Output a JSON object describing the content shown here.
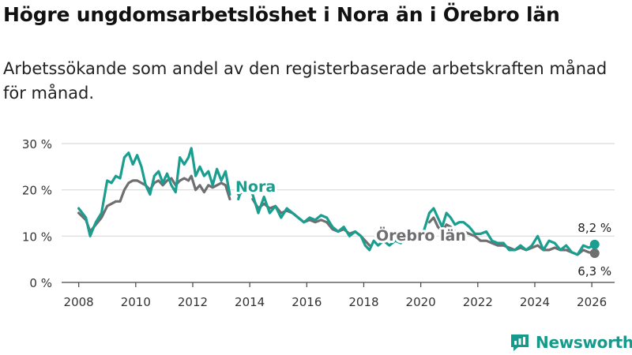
{
  "title": "Högre ungdomsarbetslöshet i Nora än i Örebro län",
  "subtitle": "Arbetssökande som andel av den registerbaserade arbetskraften månad för månad.",
  "brand": "Newsworthy",
  "colors": {
    "nora": "#1a9e8f",
    "orebro": "#6f6f72",
    "grid": "#d9d9d9",
    "axis": "#444444"
  },
  "chart_data": {
    "type": "line",
    "ylabel": "",
    "xlabel": "",
    "ylim": [
      0,
      30
    ],
    "xlim": [
      2007.4,
      2026.8
    ],
    "y_ticks": [
      0,
      10,
      20,
      30
    ],
    "y_tick_labels": [
      "0 %",
      "10 %",
      "20 %",
      "30 %"
    ],
    "x_ticks": [
      2008,
      2010,
      2012,
      2014,
      2016,
      2018,
      2020,
      2022,
      2024,
      2026
    ],
    "x_tick_labels": [
      "2008",
      "2010",
      "2012",
      "2014",
      "2016",
      "2018",
      "2020",
      "2022",
      "2024",
      "2026"
    ],
    "series": [
      {
        "name": "Nora",
        "label": "Nora",
        "end_label": "8,2 %",
        "x": [
          2008.0,
          2008.25,
          2008.4,
          2008.6,
          2008.8,
          2009.0,
          2009.15,
          2009.3,
          2009.45,
          2009.6,
          2009.75,
          2009.9,
          2010.05,
          2010.2,
          2010.35,
          2010.5,
          2010.65,
          2010.8,
          2010.95,
          2011.1,
          2011.25,
          2011.4,
          2011.55,
          2011.7,
          2011.85,
          2011.95,
          2012.1,
          2012.25,
          2012.4,
          2012.55,
          2012.7,
          2012.85,
          2013.0,
          2013.15,
          2013.3,
          2013.45,
          2013.6,
          2013.75,
          2013.9,
          2014.1,
          2014.3,
          2014.5,
          2014.7,
          2014.9,
          2015.1,
          2015.3,
          2015.5,
          2015.7,
          2015.9,
          2016.1,
          2016.3,
          2016.5,
          2016.7,
          2016.9,
          2017.1,
          2017.3,
          2017.5,
          2017.7,
          2017.9,
          2018.05,
          2018.2,
          2018.35,
          2018.5,
          2018.7,
          2018.9,
          2019.1,
          2019.3,
          2019.5,
          2019.7,
          2019.9,
          2020.1,
          2020.3,
          2020.45,
          2020.6,
          2020.75,
          2020.9,
          2021.05,
          2021.2,
          2021.35,
          2021.5,
          2021.7,
          2021.9,
          2022.1,
          2022.3,
          2022.5,
          2022.7,
          2022.9,
          2023.1,
          2023.3,
          2023.5,
          2023.7,
          2023.9,
          2024.1,
          2024.3,
          2024.5,
          2024.7,
          2024.9,
          2025.1,
          2025.3,
          2025.5,
          2025.7,
          2025.9,
          2026.1
        ],
        "values": [
          16,
          14,
          10,
          13,
          15,
          22,
          21.5,
          23,
          22.5,
          27,
          28,
          25.5,
          27.5,
          25,
          21,
          19,
          23,
          24,
          21.5,
          23.5,
          21,
          19.5,
          27,
          25.5,
          27,
          29,
          23,
          25,
          23,
          24,
          21,
          24.5,
          22,
          24,
          19,
          null,
          18,
          21,
          null,
          19,
          15,
          18.5,
          15,
          16.5,
          14,
          16,
          15,
          14,
          13,
          14,
          13.5,
          14.5,
          14,
          12,
          11,
          12,
          10,
          11,
          10,
          8,
          7,
          9,
          8,
          9,
          8,
          9,
          8.5,
          10,
          9,
          10,
          11,
          15,
          16,
          14,
          12,
          15,
          14,
          12.5,
          13,
          13,
          12,
          10.5,
          10.5,
          11,
          9,
          8.5,
          8.5,
          7,
          7,
          8,
          7,
          8,
          10,
          7,
          9,
          8.5,
          7,
          8,
          6.5,
          6,
          8,
          7.5,
          8.2
        ]
      },
      {
        "name": "Örebro län",
        "label": "Örebro län",
        "end_label": "6,3 %",
        "x": [
          2008.0,
          2008.25,
          2008.4,
          2008.6,
          2008.8,
          2009.0,
          2009.15,
          2009.3,
          2009.45,
          2009.6,
          2009.75,
          2009.9,
          2010.05,
          2010.2,
          2010.35,
          2010.5,
          2010.65,
          2010.8,
          2010.95,
          2011.1,
          2011.25,
          2011.4,
          2011.55,
          2011.7,
          2011.85,
          2011.95,
          2012.1,
          2012.25,
          2012.4,
          2012.55,
          2012.7,
          2012.85,
          2013.0,
          2013.15,
          2013.3,
          2013.45,
          2013.6,
          2013.75,
          2013.9,
          2014.1,
          2014.3,
          2014.5,
          2014.7,
          2014.9,
          2015.1,
          2015.3,
          2015.5,
          2015.7,
          2015.9,
          2016.1,
          2016.3,
          2016.5,
          2016.7,
          2016.9,
          2017.1,
          2017.3,
          2017.5,
          2017.7,
          2017.9,
          2018.05,
          2018.2,
          2018.35,
          2018.5,
          2018.7,
          2018.9,
          2019.1,
          2019.3,
          2019.5,
          2019.7,
          2019.9,
          2020.1,
          2020.3,
          2020.45,
          2020.6,
          2020.75,
          2020.9,
          2021.05,
          2021.2,
          2021.35,
          2021.5,
          2021.7,
          2021.9,
          2022.1,
          2022.3,
          2022.5,
          2022.7,
          2022.9,
          2023.1,
          2023.3,
          2023.5,
          2023.7,
          2023.9,
          2024.1,
          2024.3,
          2024.5,
          2024.7,
          2024.9,
          2025.1,
          2025.3,
          2025.5,
          2025.7,
          2025.9,
          2026.1
        ],
        "values": [
          15,
          13.5,
          11,
          12.5,
          14,
          16.5,
          17,
          17.5,
          17.5,
          20,
          21.5,
          22,
          22,
          21.5,
          21,
          20,
          21.5,
          22,
          21,
          22,
          22.5,
          21,
          22,
          22.5,
          22,
          23,
          20,
          21,
          19.5,
          21,
          20.5,
          21,
          21.5,
          21,
          18,
          null,
          19,
          19.5,
          null,
          18,
          16,
          17,
          16,
          16.5,
          15,
          15.5,
          15,
          14,
          13,
          13.5,
          13,
          13.5,
          13,
          11.5,
          11,
          11.5,
          10.5,
          11,
          10,
          9,
          8,
          null,
          null,
          null,
          null,
          null,
          null,
          null,
          null,
          null,
          null,
          13,
          14,
          12,
          11,
          12.5,
          12,
          11,
          11,
          11,
          10.5,
          10,
          9,
          9,
          8.5,
          8,
          8,
          7.5,
          7,
          7.5,
          7,
          7.5,
          8,
          7,
          7,
          7.5,
          7,
          7,
          6.5,
          6,
          7,
          6.5,
          6.3
        ]
      }
    ],
    "annotations": [
      {
        "series": "Nora",
        "text": "Nora"
      },
      {
        "series": "Örebro län",
        "text": "Örebro län"
      }
    ]
  }
}
